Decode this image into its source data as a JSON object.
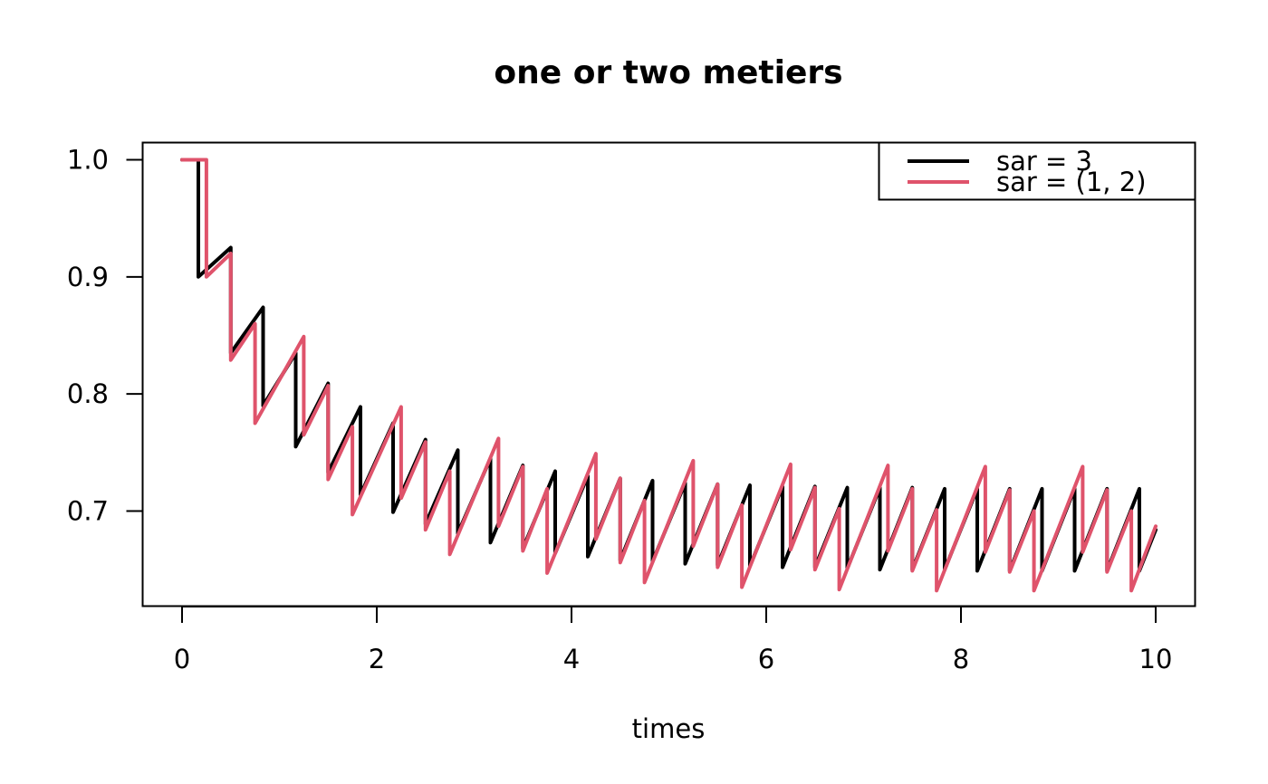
{
  "chart_data": {
    "type": "line",
    "title": "one or two metiers",
    "xlabel": "times",
    "ylabel": "",
    "xlim": [
      0,
      10
    ],
    "ylim": [
      0.62,
      1.01
    ],
    "xticks": [
      0,
      2,
      4,
      6,
      8,
      10
    ],
    "xtick_labels": [
      "0",
      "2",
      "4",
      "6",
      "8",
      "10"
    ],
    "yticks": [
      0.7,
      0.8,
      0.9,
      1.0
    ],
    "ytick_labels": [
      "0.7",
      "0.8",
      "0.9",
      "1.0"
    ],
    "grid": false,
    "legend_position": "top-right",
    "series": [
      {
        "name": "sar = 3",
        "color": "#000000",
        "x": [
          0,
          0.167,
          0.167,
          0.5,
          0.5,
          0.833,
          0.833,
          1.167,
          1.167,
          1.5,
          1.5,
          1.833,
          1.833,
          2.167,
          2.167,
          2.5,
          2.5,
          2.833,
          2.833,
          3.167,
          3.167,
          3.5,
          3.5,
          3.833,
          3.833,
          4.167,
          4.167,
          4.5,
          4.5,
          4.833,
          4.833,
          5.167,
          5.167,
          5.5,
          5.5,
          5.833,
          5.833,
          6.167,
          6.167,
          6.5,
          6.5,
          6.833,
          6.833,
          7.167,
          7.167,
          7.5,
          7.5,
          7.833,
          7.833,
          8.167,
          8.167,
          8.5,
          8.5,
          8.833,
          8.833,
          9.167,
          9.167,
          9.5,
          9.5,
          9.833,
          9.833,
          10
        ],
        "y": [
          1.0,
          1.0,
          0.9,
          0.925,
          0.835,
          0.874,
          0.79,
          0.835,
          0.755,
          0.809,
          0.733,
          0.789,
          0.714,
          0.775,
          0.699,
          0.761,
          0.689,
          0.752,
          0.681,
          0.745,
          0.673,
          0.739,
          0.668,
          0.734,
          0.664,
          0.73,
          0.661,
          0.728,
          0.658,
          0.726,
          0.657,
          0.724,
          0.655,
          0.723,
          0.654,
          0.722,
          0.653,
          0.721,
          0.652,
          0.721,
          0.652,
          0.72,
          0.651,
          0.72,
          0.65,
          0.72,
          0.65,
          0.719,
          0.65,
          0.719,
          0.649,
          0.719,
          0.649,
          0.719,
          0.649,
          0.719,
          0.649,
          0.719,
          0.649,
          0.719,
          0.649,
          0.684
        ]
      },
      {
        "name": "sar = (1, 2)",
        "color": "#DF536B",
        "x": [
          0,
          0.25,
          0.25,
          0.5,
          0.5,
          0.75,
          0.75,
          1.25,
          1.25,
          1.5,
          1.5,
          1.75,
          1.75,
          2.25,
          2.25,
          2.5,
          2.5,
          2.75,
          2.75,
          3.25,
          3.25,
          3.5,
          3.5,
          3.75,
          3.75,
          4.25,
          4.25,
          4.5,
          4.5,
          4.75,
          4.75,
          5.25,
          5.25,
          5.5,
          5.5,
          5.75,
          5.75,
          6.25,
          6.25,
          6.5,
          6.5,
          6.75,
          6.75,
          7.25,
          7.25,
          7.5,
          7.5,
          7.75,
          7.75,
          8.25,
          8.25,
          8.5,
          8.5,
          8.75,
          8.75,
          9.25,
          9.25,
          9.5,
          9.5,
          9.75,
          9.75,
          10
        ],
        "y": [
          1.0,
          1.0,
          0.9,
          0.92,
          0.829,
          0.86,
          0.775,
          0.849,
          0.765,
          0.807,
          0.727,
          0.772,
          0.697,
          0.789,
          0.711,
          0.759,
          0.684,
          0.734,
          0.663,
          0.762,
          0.687,
          0.738,
          0.666,
          0.719,
          0.647,
          0.749,
          0.676,
          0.728,
          0.656,
          0.709,
          0.639,
          0.743,
          0.67,
          0.723,
          0.652,
          0.705,
          0.635,
          0.74,
          0.667,
          0.72,
          0.65,
          0.702,
          0.633,
          0.739,
          0.666,
          0.719,
          0.649,
          0.701,
          0.632,
          0.738,
          0.665,
          0.718,
          0.648,
          0.7,
          0.632,
          0.738,
          0.665,
          0.718,
          0.648,
          0.7,
          0.632,
          0.687
        ]
      }
    ]
  }
}
